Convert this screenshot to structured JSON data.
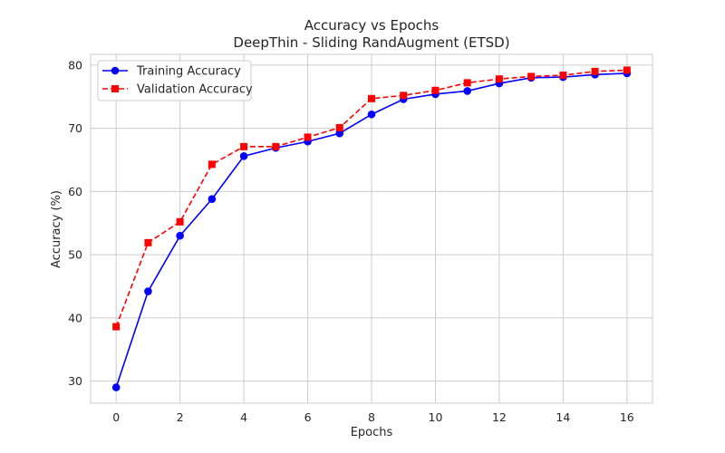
{
  "chart_data": {
    "type": "line",
    "title": "Accuracy vs Epochs",
    "subtitle": "DeepThin - Sliding RandAugment (ETSD)",
    "xlabel": "Epochs",
    "ylabel": "Accuracy (%)",
    "x": [
      0,
      1,
      2,
      3,
      4,
      5,
      6,
      7,
      8,
      9,
      10,
      11,
      12,
      13,
      14,
      15,
      16
    ],
    "xlim": [
      -0.8,
      16.8
    ],
    "ylim": [
      26.5,
      81.7
    ],
    "xticks": [
      0,
      2,
      4,
      6,
      8,
      10,
      12,
      14,
      16
    ],
    "yticks": [
      30,
      40,
      50,
      60,
      70,
      80
    ],
    "grid": true,
    "legend_position": "top-left",
    "series": [
      {
        "name": "Training Accuracy",
        "color": "#0000ff",
        "line_style": "solid",
        "marker": "circle",
        "values": [
          29.0,
          44.2,
          53.0,
          58.8,
          65.6,
          66.9,
          67.9,
          69.2,
          72.2,
          74.6,
          75.4,
          75.9,
          77.1,
          78.0,
          78.1,
          78.5,
          78.7
        ]
      },
      {
        "name": "Validation Accuracy",
        "color": "#ff0000",
        "line_style": "dashed",
        "marker": "square",
        "values": [
          38.6,
          51.9,
          55.2,
          64.3,
          67.1,
          67.1,
          68.6,
          70.1,
          74.7,
          75.2,
          76.0,
          77.2,
          77.8,
          78.2,
          78.4,
          79.0,
          79.2
        ]
      }
    ]
  }
}
